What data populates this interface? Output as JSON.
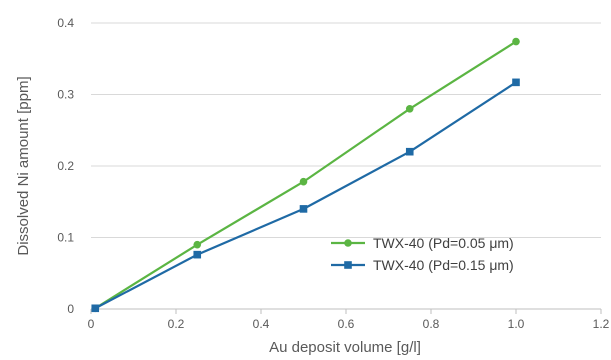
{
  "chart_data": {
    "type": "line",
    "title": "",
    "xlabel": "Au deposit volume [g/l]",
    "ylabel": "Dissolved Ni amount [ppm]",
    "xlim": [
      0,
      1.2
    ],
    "ylim": [
      0,
      0.4
    ],
    "x_ticks": [
      "0",
      "0.2",
      "0.4",
      "0.6",
      "0.8",
      "1.0",
      "1.2"
    ],
    "y_ticks": [
      "0",
      "0.1",
      "0.2",
      "0.3",
      "0.4"
    ],
    "grid": "horizontal",
    "legend_position": "bottom-right",
    "series": [
      {
        "name": "TWX-40 (Pd=0.05 μm)",
        "color": "#5bb543",
        "marker": "circle",
        "x": [
          0.01,
          0.25,
          0.5,
          0.75,
          1.0
        ],
        "y": [
          0.001,
          0.09,
          0.178,
          0.28,
          0.374
        ]
      },
      {
        "name": "TWX-40 (Pd=0.15 μm)",
        "color": "#1f6aa5",
        "marker": "square",
        "x": [
          0.01,
          0.25,
          0.5,
          0.75,
          1.0
        ],
        "y": [
          0.001,
          0.076,
          0.14,
          0.22,
          0.317
        ]
      }
    ]
  }
}
